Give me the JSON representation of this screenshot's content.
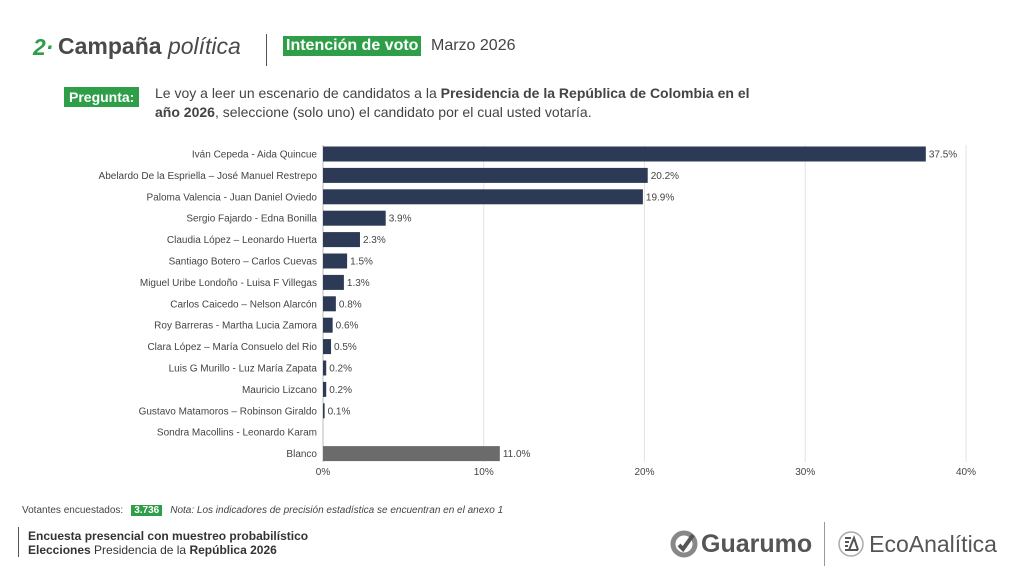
{
  "header": {
    "section_number": "2·",
    "section_title": "Campaña",
    "section_title_italic": "política",
    "topic": "Intención de voto",
    "date": "Marzo  2026"
  },
  "question": {
    "label": "Pregunta:",
    "text_1": "Le voy a leer un escenario de candidatos a la ",
    "text_bold": "Presidencia de la República de Colombia en el año 2026",
    "text_2": ", seleccione (solo uno) el candidato por el cual usted votaría."
  },
  "chart_data": {
    "type": "bar",
    "orientation": "horizontal",
    "categories": [
      "Iván Cepeda - Aida Quincue",
      "Abelardo De la Espriella – José Manuel Restrepo",
      "Paloma Valencia - Juan Daniel Oviedo",
      "Sergio Fajardo - Edna Bonilla",
      "Claudia López – Leonardo Huerta",
      "Santiago Botero – Carlos Cuevas",
      "Miguel Uribe Londoño - Luisa F Villegas",
      "Carlos Caicedo – Nelson Alarcón",
      "Roy Barreras - Martha Lucia Zamora",
      "Clara López – María Consuelo del Rio",
      "Luis G Murillo - Luz María Zapata",
      "Mauricio Lizcano",
      "Gustavo Matamoros – Robinson Giraldo",
      "Sondra Macollins - Leonardo Karam",
      "Blanco"
    ],
    "values": [
      37.5,
      20.2,
      19.9,
      3.9,
      2.3,
      1.5,
      1.3,
      0.8,
      0.6,
      0.5,
      0.2,
      0.2,
      0.1,
      null,
      11.0
    ],
    "value_labels": [
      "37.5%",
      "20.2%",
      "19.9%",
      "3.9%",
      "2.3%",
      "1.5%",
      "1.3%",
      "0.8%",
      "0.6%",
      "0.5%",
      "0.2%",
      "0.2%",
      "0.1%",
      "",
      "11.0%"
    ],
    "xticks": [
      "0%",
      "10%",
      "20%",
      "30%",
      "40%"
    ],
    "xlim": [
      0,
      40
    ],
    "grid": true,
    "colors": {
      "candidate": "#2c3a55",
      "blanco": "#6b6b6b"
    }
  },
  "footer": {
    "sample_label": "Votantes encuestados:",
    "sample_n": "3.736",
    "note": "Nota: Los indicadores de precisión estadística se encuentran en el anexo 1",
    "line1": "Encuesta presencial con muestreo probabilístico",
    "line2_bold": "Elecciones",
    "line2": " Presidencia de la ",
    "line2_bold2": "República 2026"
  },
  "logos": {
    "guarumo": "Guarumo",
    "ecoanalitica": "EcoAnalítica"
  }
}
